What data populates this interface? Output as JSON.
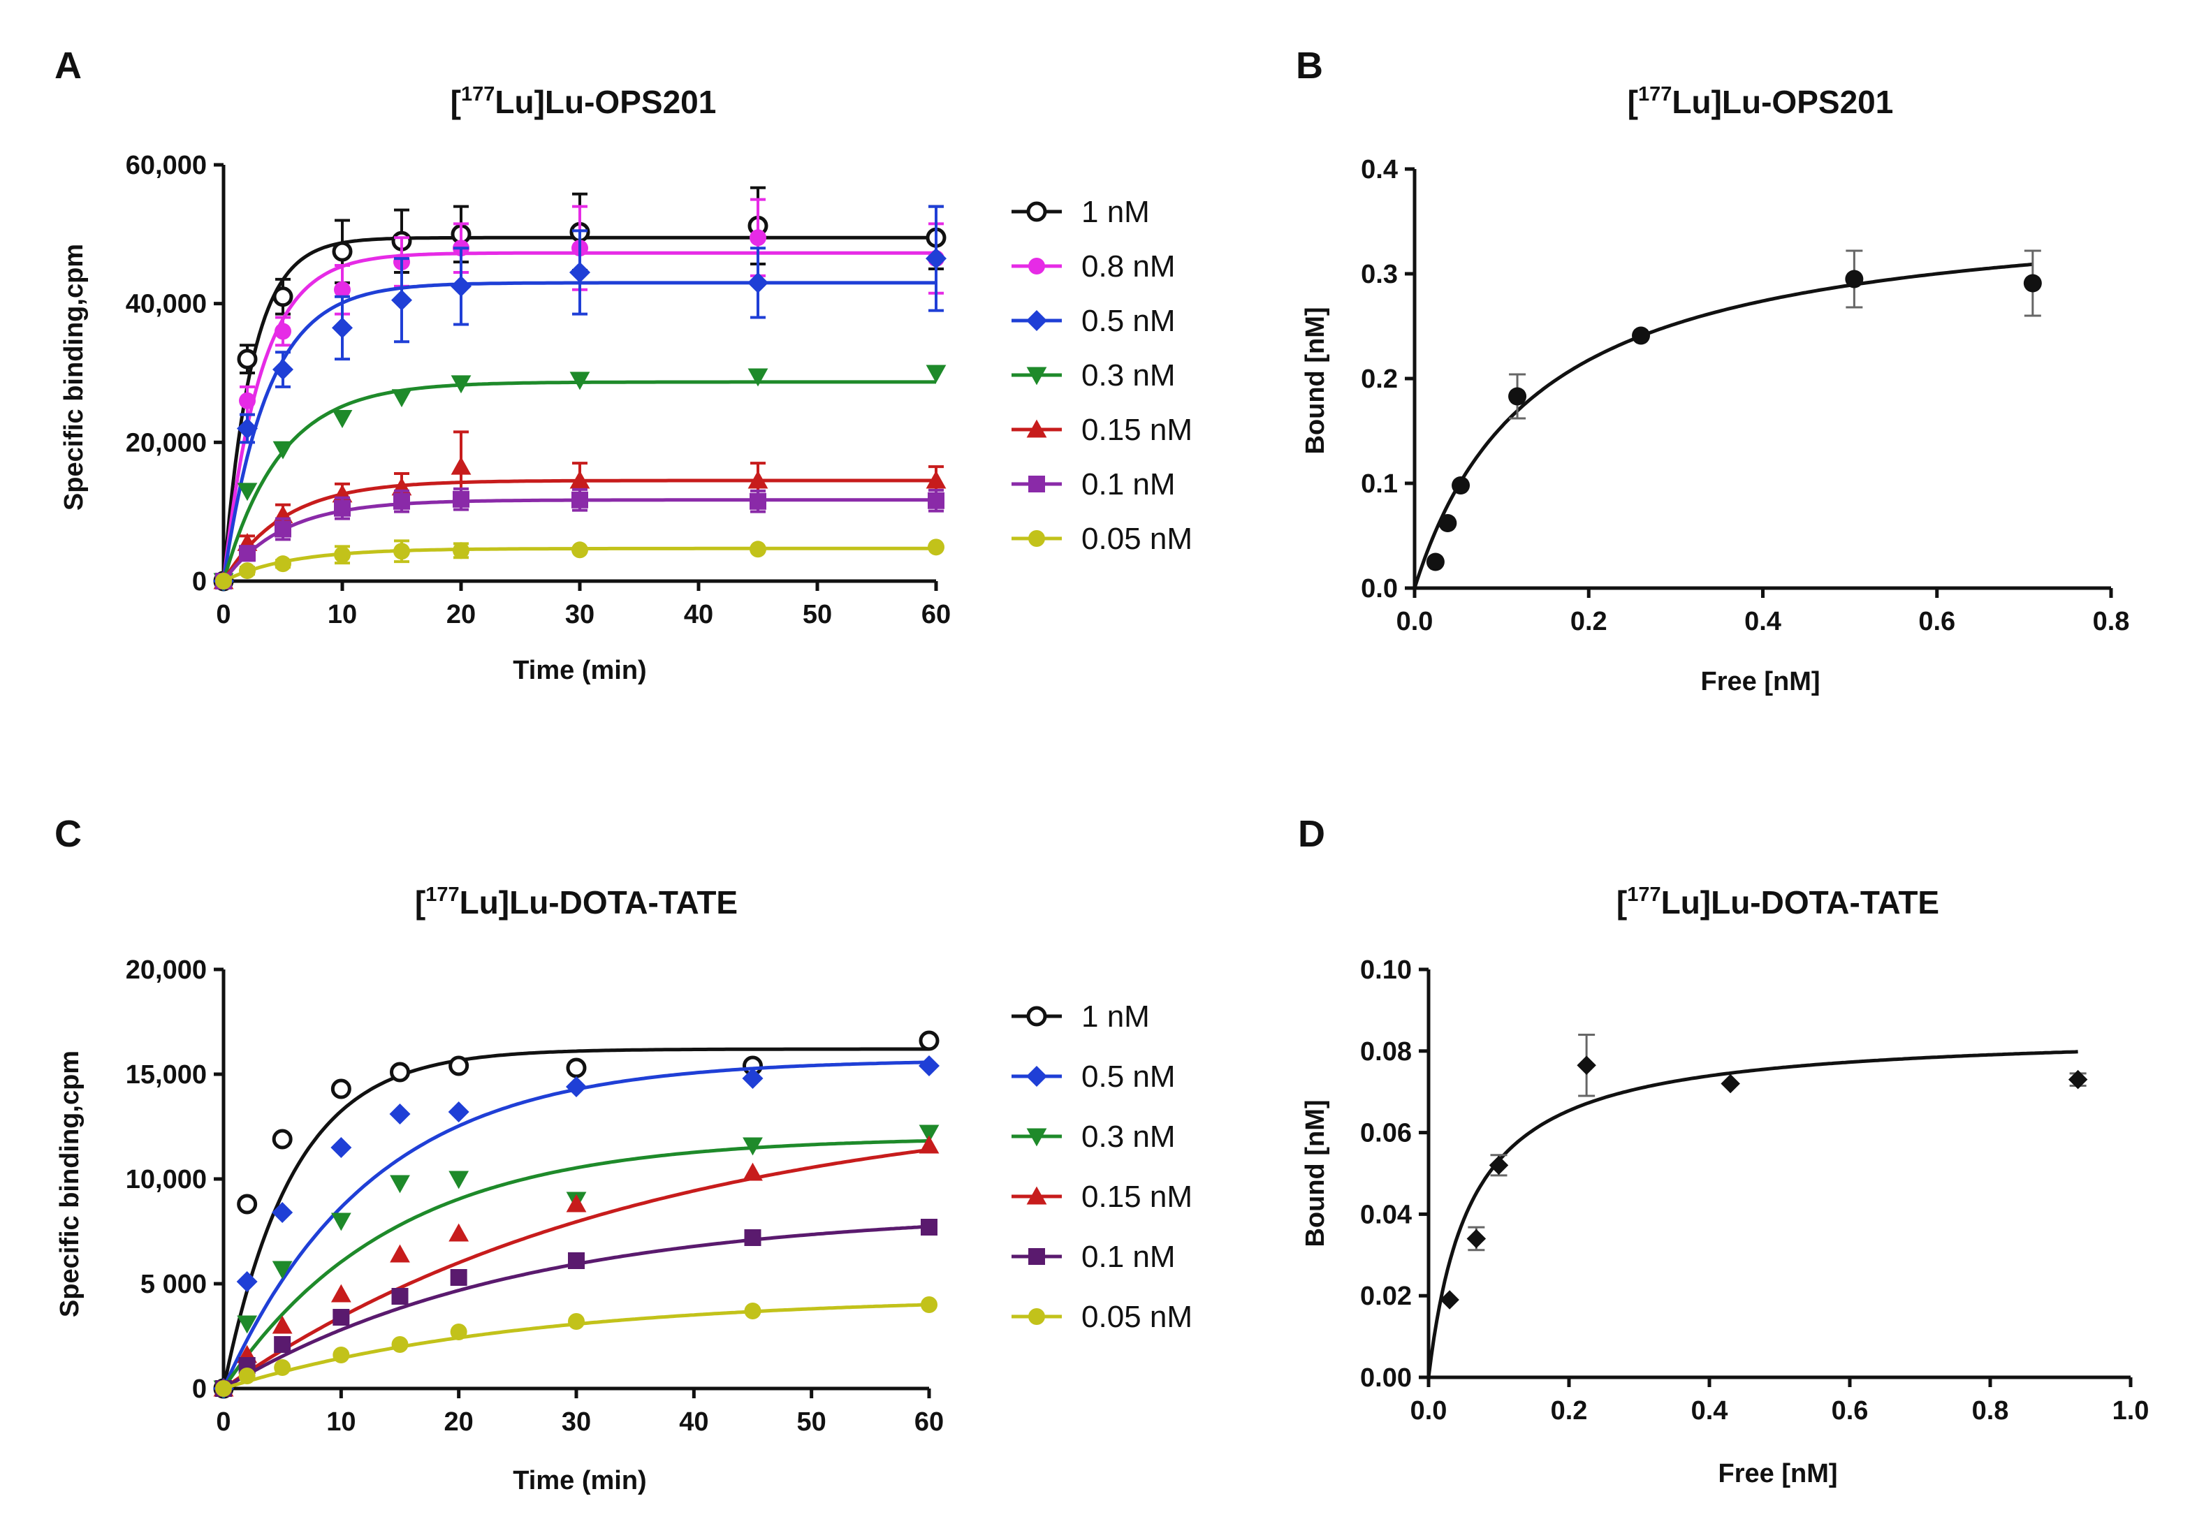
{
  "figure": {
    "panels": [
      "A",
      "B",
      "C",
      "D"
    ]
  },
  "chart_data": [
    {
      "id": "A",
      "panel_letter": "A",
      "type": "line",
      "title_prefix": "[",
      "title_sup": "177",
      "title_suffix": "Lu]Lu-OPS201",
      "xlabel": "Time (min)",
      "ylabel": "Specific binding,cpm",
      "xlim": [
        0,
        60
      ],
      "ylim": [
        0,
        60000
      ],
      "xticks": [
        0,
        10,
        20,
        30,
        40,
        50,
        60
      ],
      "xtick_labels": [
        "0",
        "10",
        "20",
        "30",
        "40",
        "50",
        "60"
      ],
      "yticks": [
        0,
        20000,
        40000,
        60000
      ],
      "ytick_labels": [
        "0",
        "20,000",
        "40,000",
        "60,000"
      ],
      "legend": "right",
      "series": [
        {
          "name": "1 nM",
          "color": "#111111",
          "marker": "circle-open",
          "plateau": 49500,
          "k": 0.42,
          "x": [
            0,
            2,
            5,
            10,
            15,
            20,
            30,
            45,
            60
          ],
          "y": [
            0,
            32000,
            41000,
            47500,
            49000,
            50000,
            50300,
            51200,
            49500
          ],
          "err": [
            0,
            2000,
            2500,
            4500,
            4500,
            4000,
            5500,
            5500,
            4500
          ]
        },
        {
          "name": "0.8 nM",
          "color": "#e62be6",
          "marker": "circle",
          "plateau": 47300,
          "k": 0.32,
          "x": [
            0,
            2,
            5,
            10,
            15,
            20,
            30,
            45,
            60
          ],
          "y": [
            0,
            26000,
            36000,
            42000,
            46000,
            48000,
            48000,
            49500,
            46500
          ],
          "err": [
            0,
            2000,
            2000,
            3500,
            3500,
            3500,
            6000,
            5500,
            5000
          ]
        },
        {
          "name": "0.5 nM",
          "color": "#1f3fd6",
          "marker": "diamond",
          "plateau": 43000,
          "k": 0.27,
          "x": [
            0,
            2,
            5,
            10,
            15,
            20,
            30,
            45,
            60
          ],
          "y": [
            0,
            22000,
            30500,
            36500,
            40500,
            42500,
            44500,
            43000,
            46500
          ],
          "err": [
            0,
            2000,
            2500,
            4500,
            6000,
            5500,
            6000,
            5000,
            7500
          ]
        },
        {
          "name": "0.3 nM",
          "color": "#1e8a2a",
          "marker": "triangle-down",
          "plateau": 28700,
          "k": 0.21,
          "x": [
            0,
            2,
            5,
            10,
            15,
            20,
            30,
            45,
            60
          ],
          "y": [
            0,
            13000,
            19000,
            23500,
            26500,
            28500,
            29000,
            29500,
            30000
          ],
          "err": [
            0,
            0,
            0,
            0,
            0,
            0,
            0,
            0,
            0
          ]
        },
        {
          "name": "0.15 nM",
          "color": "#c71c1c",
          "marker": "triangle-up",
          "plateau": 14500,
          "k": 0.2,
          "x": [
            0,
            2,
            5,
            10,
            15,
            20,
            30,
            45,
            60
          ],
          "y": [
            0,
            5500,
            9500,
            12500,
            13500,
            16500,
            14500,
            14500,
            14500
          ],
          "err": [
            0,
            1000,
            1500,
            1500,
            2000,
            5000,
            2500,
            2500,
            2000
          ]
        },
        {
          "name": "0.1 nM",
          "color": "#8a2aa8",
          "marker": "square",
          "plateau": 11700,
          "k": 0.2,
          "x": [
            0,
            2,
            5,
            10,
            15,
            20,
            30,
            45,
            60
          ],
          "y": [
            0,
            4000,
            7500,
            10500,
            11500,
            11800,
            11700,
            11500,
            11600
          ],
          "err": [
            0,
            1000,
            1500,
            1500,
            1500,
            1500,
            1500,
            1500,
            1500
          ]
        },
        {
          "name": "0.05 nM",
          "color": "#c2c21a",
          "marker": "circle",
          "plateau": 4700,
          "k": 0.18,
          "x": [
            0,
            2,
            5,
            10,
            15,
            20,
            30,
            45,
            60
          ],
          "y": [
            0,
            1500,
            2500,
            3800,
            4300,
            4400,
            4500,
            4600,
            4900
          ],
          "err": [
            0,
            500,
            500,
            1200,
            1500,
            1000,
            0,
            0,
            0
          ]
        }
      ]
    },
    {
      "id": "B",
      "panel_letter": "B",
      "type": "scatter",
      "title_prefix": "[",
      "title_sup": "177",
      "title_suffix": "Lu]Lu-OPS201",
      "xlabel": "Free [nM]",
      "ylabel": "Bound [nM]",
      "xlim": [
        0,
        0.8
      ],
      "ylim": [
        0,
        0.4
      ],
      "xticks": [
        0,
        0.2,
        0.4,
        0.6,
        0.8
      ],
      "xtick_labels": [
        "0.0",
        "0.2",
        "0.4",
        "0.6",
        "0.8"
      ],
      "yticks": [
        0,
        0.1,
        0.2,
        0.3,
        0.4
      ],
      "ytick_labels": [
        "0.0",
        "0.1",
        "0.2",
        "0.3",
        "0.4"
      ],
      "fit": {
        "model": "one-site",
        "Bmax": 0.37,
        "Kd": 0.14,
        "xmax": 0.71
      },
      "series": [
        {
          "name": "OPS201",
          "color": "#111111",
          "marker": "circle",
          "x": [
            0.024,
            0.038,
            0.053,
            0.118,
            0.26,
            0.505,
            0.71
          ],
          "y": [
            0.025,
            0.062,
            0.098,
            0.183,
            0.241,
            0.295,
            0.291
          ],
          "err": [
            0,
            0,
            0,
            0.021,
            0,
            0.027,
            0.031
          ]
        }
      ]
    },
    {
      "id": "C",
      "panel_letter": "C",
      "type": "line",
      "title_prefix": "[",
      "title_sup": "177",
      "title_suffix": "Lu]Lu-DOTA-TATE",
      "xlabel": "Time (min)",
      "ylabel": "Specific binding,cpm",
      "xlim": [
        0,
        60
      ],
      "ylim": [
        0,
        20000
      ],
      "xticks": [
        0,
        10,
        20,
        30,
        40,
        50,
        60
      ],
      "xtick_labels": [
        "0",
        "10",
        "20",
        "30",
        "40",
        "50",
        "60"
      ],
      "yticks": [
        0,
        5000,
        10000,
        15000,
        20000
      ],
      "ytick_labels": [
        "0",
        "5 000",
        "10,000",
        "15,000",
        "20,000"
      ],
      "legend": "right",
      "series": [
        {
          "name": "1 nM",
          "color": "#111111",
          "marker": "circle-open",
          "plateau": 16200,
          "k": 0.17,
          "x": [
            0,
            2,
            5,
            10,
            15,
            20,
            30,
            45,
            60
          ],
          "y": [
            0,
            8800,
            11900,
            14300,
            15100,
            15400,
            15300,
            15400,
            16600
          ],
          "err": [
            0,
            0,
            0,
            0,
            0,
            0,
            0,
            0,
            0
          ]
        },
        {
          "name": "0.5 nM",
          "color": "#1f3fd6",
          "marker": "diamond",
          "plateau": 15700,
          "k": 0.08,
          "x": [
            0,
            2,
            5,
            10,
            15,
            20,
            30,
            45,
            60
          ],
          "y": [
            0,
            5100,
            8400,
            11500,
            13100,
            13200,
            14400,
            14800,
            15400
          ],
          "err": [
            0,
            0,
            0,
            0,
            0,
            0,
            0,
            0,
            0
          ]
        },
        {
          "name": "0.3 nM",
          "color": "#1e8a2a",
          "marker": "triangle-down",
          "plateau": 12000,
          "k": 0.07,
          "x": [
            0,
            2,
            5,
            10,
            15,
            20,
            30,
            45,
            60
          ],
          "y": [
            0,
            3100,
            5700,
            8000,
            9800,
            10000,
            9000,
            11600,
            12200
          ],
          "err": [
            0,
            0,
            0,
            0,
            0,
            0,
            0,
            0,
            0
          ]
        },
        {
          "name": "0.15 nM",
          "color": "#c71c1c",
          "marker": "triangle-up",
          "plateau": 14000,
          "k": 0.028,
          "x": [
            0,
            2,
            5,
            10,
            15,
            20,
            30,
            45,
            60
          ],
          "y": [
            0,
            1600,
            3000,
            4500,
            6400,
            7400,
            8800,
            10300,
            11600
          ],
          "err": [
            0,
            0,
            0,
            0,
            0,
            0,
            0,
            0,
            0
          ]
        },
        {
          "name": "0.1 nM",
          "color": "#5a1a6e",
          "marker": "square",
          "plateau": 8500,
          "k": 0.04,
          "x": [
            0,
            2,
            5,
            10,
            15,
            20,
            30,
            45,
            60
          ],
          "y": [
            0,
            1100,
            2100,
            3400,
            4400,
            5300,
            6100,
            7200,
            7700
          ],
          "err": [
            0,
            0,
            0,
            0,
            0,
            0,
            0,
            0,
            0
          ]
        },
        {
          "name": "0.05 nM",
          "color": "#c2c21a",
          "marker": "circle",
          "plateau": 4400,
          "k": 0.04,
          "x": [
            0,
            2,
            5,
            10,
            15,
            20,
            30,
            45,
            60
          ],
          "y": [
            0,
            600,
            1000,
            1600,
            2100,
            2700,
            3200,
            3700,
            4000
          ],
          "err": [
            0,
            0,
            0,
            0,
            0,
            0,
            0,
            0,
            0
          ]
        }
      ]
    },
    {
      "id": "D",
      "panel_letter": "D",
      "type": "scatter",
      "title_prefix": "[",
      "title_sup": "177",
      "title_suffix": "Lu]Lu-DOTA-TATE",
      "xlabel": "Free [nM]",
      "ylabel": "Bound [nM]",
      "xlim": [
        0,
        1.0
      ],
      "ylim": [
        0,
        0.1
      ],
      "xticks": [
        0,
        0.2,
        0.4,
        0.6,
        0.8,
        1.0
      ],
      "xtick_labels": [
        "0.0",
        "0.2",
        "0.4",
        "0.6",
        "0.8",
        "1.0"
      ],
      "yticks": [
        0,
        0.02,
        0.04,
        0.06,
        0.08,
        0.1
      ],
      "ytick_labels": [
        "0.00",
        "0.02",
        "0.04",
        "0.06",
        "0.08",
        "0.10"
      ],
      "fit": {
        "model": "one-site",
        "Bmax": 0.085,
        "Kd": 0.06,
        "xmax": 0.925
      },
      "series": [
        {
          "name": "DOTA-TATE",
          "color": "#111111",
          "marker": "diamond",
          "x": [
            0.03,
            0.068,
            0.1,
            0.225,
            0.43,
            0.925
          ],
          "y": [
            0.019,
            0.034,
            0.052,
            0.0765,
            0.072,
            0.073
          ],
          "err": [
            0,
            0.0028,
            0.0025,
            0.0075,
            0,
            0.0015
          ]
        }
      ]
    }
  ]
}
